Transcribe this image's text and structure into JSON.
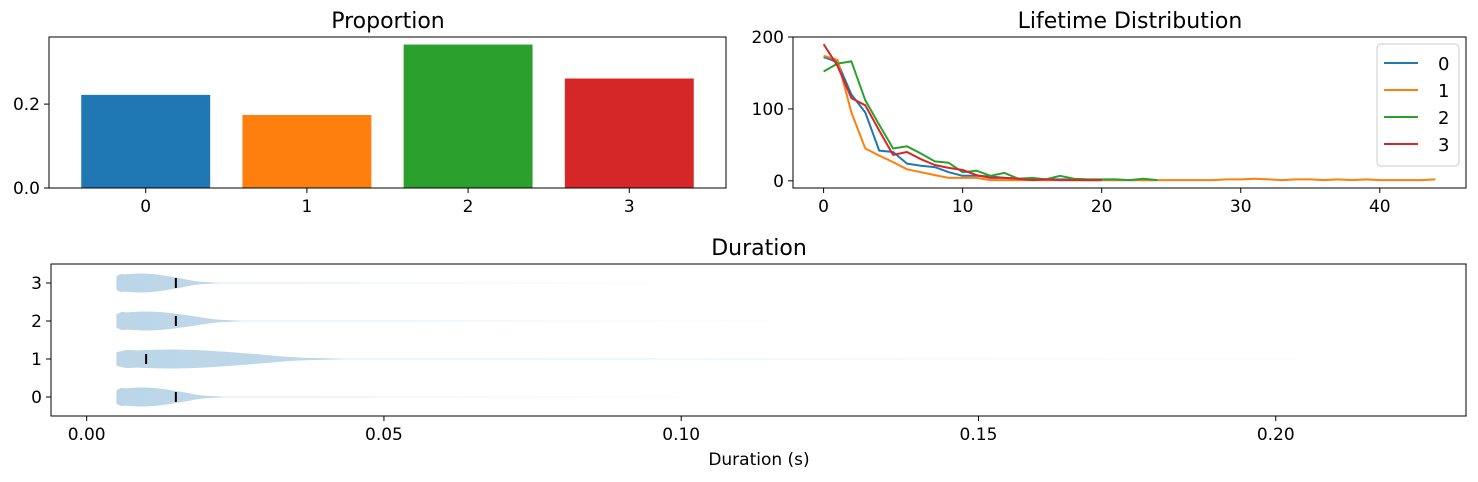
{
  "chart_data": [
    {
      "type": "bar",
      "title": "Proportion",
      "categories": [
        "0",
        "1",
        "2",
        "3"
      ],
      "values": [
        0.222,
        0.174,
        0.342,
        0.261
      ],
      "colors": [
        "#1f77b4",
        "#ff7f0e",
        "#2ca02c",
        "#d62728"
      ],
      "ylim": [
        0,
        0.36
      ],
      "yticks": [
        0.0,
        0.2
      ],
      "ytick_labels": [
        "0.0",
        "0.2"
      ]
    },
    {
      "type": "line",
      "title": "Lifetime Distribution",
      "xlim": [
        -2.2,
        46.2
      ],
      "ylim": [
        -10,
        200
      ],
      "xticks": [
        0,
        10,
        20,
        30,
        40
      ],
      "yticks": [
        0,
        100,
        200
      ],
      "legend": "upper-right",
      "series": [
        {
          "name": "0",
          "color": "#1f77b4",
          "x": [
            0,
            1,
            2,
            3,
            4,
            5,
            6,
            7,
            8,
            9,
            10,
            11,
            12,
            13,
            14,
            15,
            16,
            17,
            18,
            19,
            20,
            21,
            22,
            23,
            24
          ],
          "y": [
            172,
            165,
            120,
            95,
            42,
            40,
            24,
            21,
            19,
            12,
            7,
            7,
            6,
            4,
            3,
            3,
            2,
            2,
            2,
            1,
            1,
            1,
            1,
            1,
            1
          ]
        },
        {
          "name": "1",
          "color": "#ff7f0e",
          "x": [
            0,
            1,
            2,
            3,
            4,
            5,
            6,
            7,
            8,
            9,
            10,
            11,
            12,
            13,
            14,
            15,
            16,
            17,
            18,
            19,
            20,
            21,
            22,
            23,
            24,
            25,
            26,
            27,
            28,
            29,
            30,
            31,
            32,
            33,
            34,
            35,
            36,
            37,
            38,
            39,
            40,
            41,
            42,
            43,
            44
          ],
          "y": [
            174,
            168,
            95,
            45,
            35,
            26,
            16,
            12,
            8,
            4,
            4,
            4,
            1,
            1,
            1,
            1,
            1,
            1,
            1,
            1,
            1,
            1,
            1,
            1,
            1,
            1,
            1,
            1,
            1,
            2,
            2,
            3,
            2,
            1,
            2,
            2,
            1,
            2,
            1,
            2,
            1,
            1,
            1,
            1,
            2
          ]
        },
        {
          "name": "2",
          "color": "#2ca02c",
          "x": [
            0,
            1,
            2,
            3,
            4,
            5,
            6,
            7,
            8,
            9,
            10,
            11,
            12,
            13,
            14,
            15,
            16,
            17,
            18,
            19,
            20,
            21,
            22,
            23,
            24
          ],
          "y": [
            152,
            163,
            166,
            112,
            78,
            45,
            48,
            38,
            27,
            25,
            12,
            14,
            7,
            11,
            3,
            4,
            2,
            7,
            3,
            2,
            2,
            2,
            1,
            3,
            1
          ]
        },
        {
          "name": "3",
          "color": "#d62728",
          "x": [
            0,
            1,
            2,
            3,
            4,
            5,
            6,
            7,
            8,
            9,
            10,
            11,
            12,
            13,
            14,
            15,
            16,
            17,
            18,
            19,
            20
          ],
          "y": [
            190,
            160,
            115,
            105,
            70,
            36,
            40,
            30,
            22,
            18,
            15,
            8,
            4,
            4,
            3,
            1,
            2,
            1,
            1,
            1,
            1
          ]
        }
      ]
    },
    {
      "type": "violin",
      "title": "Duration",
      "xlabel": "Duration (s)",
      "xlim": [
        -0.006,
        0.232
      ],
      "xticks": [
        0.0,
        0.05,
        0.1,
        0.15,
        0.2
      ],
      "xtick_labels": [
        "0.00",
        "0.05",
        "0.10",
        "0.15",
        "0.20"
      ],
      "categories": [
        "0",
        "1",
        "2",
        "3"
      ],
      "medians": [
        0.015,
        0.01,
        0.015,
        0.015
      ],
      "min": [
        0.005,
        0.005,
        0.005,
        0.005
      ],
      "max": [
        0.1,
        0.205,
        0.115,
        0.095
      ],
      "color": "#1f77b4"
    }
  ]
}
